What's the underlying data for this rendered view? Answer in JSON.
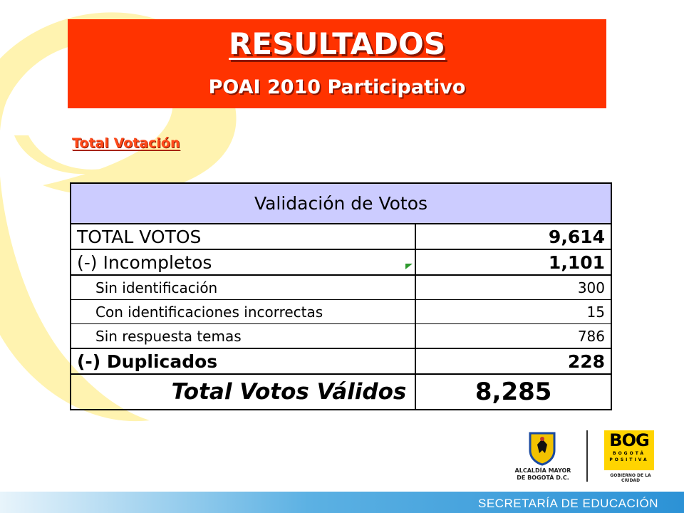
{
  "header": {
    "title": "RESULTADOS",
    "subtitle": "POAI 2010 Participativo"
  },
  "section_label": "Total Votación",
  "table": {
    "heading": "Validación de Votos",
    "rows": [
      {
        "label": "TOTAL VOTOS",
        "value": "9,614"
      },
      {
        "label": "(-) Incompletos",
        "value": "1,101"
      },
      {
        "label": "Sin identificación",
        "value": "300"
      },
      {
        "label": "Con identificaciones incorrectas",
        "value": "15"
      },
      {
        "label": "Sin respuesta temas",
        "value": "786"
      },
      {
        "label": "(-) Duplicados",
        "value": "228"
      },
      {
        "label": "Total Votos Válidos",
        "value": "8,285"
      }
    ]
  },
  "logos": {
    "alcaldia": "ALCALDÍA MAYOR DE BOGOTÁ D.C.",
    "bog": "BOG",
    "bog_tag": "BOGOTÁ POSITIVA",
    "gobierno": "GOBIERNO DE LA CIUDAD"
  },
  "footer": {
    "text": "SECRETARÍA DE EDUCACIÓN"
  },
  "colors": {
    "header_bg": "#ff3300",
    "table_head_bg": "#ccccff",
    "swirl": "#fff3b0",
    "footer_blue": "#2c92d6",
    "bog_yellow": "#ffd400"
  }
}
